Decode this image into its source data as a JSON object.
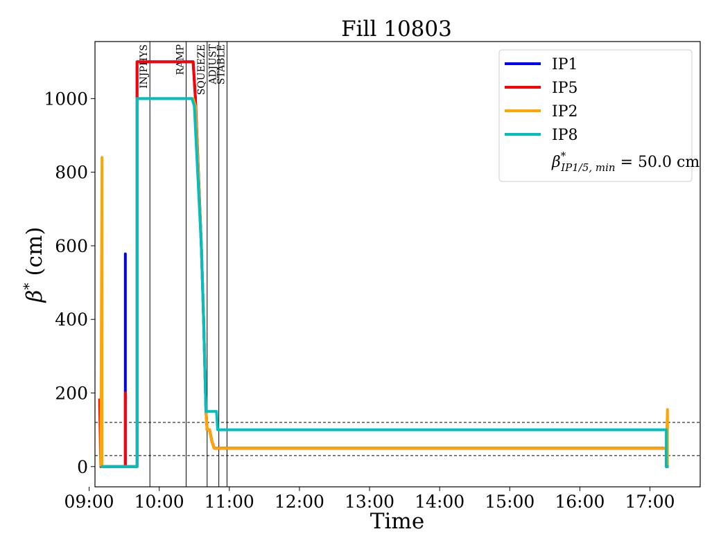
{
  "chart_data": {
    "type": "line",
    "title": "Fill 10803",
    "xlabel": "Time",
    "ylabel_symbol": "β",
    "ylabel_sup": "*",
    "ylabel_unit": "(cm)",
    "xlim": [
      "09:05",
      "17:43"
    ],
    "ylim": [
      -55,
      1155
    ],
    "x_ticks": [
      "09:00",
      "10:00",
      "11:00",
      "12:00",
      "13:00",
      "14:00",
      "15:00",
      "16:00",
      "17:00"
    ],
    "y_ticks": [
      0,
      200,
      400,
      600,
      800,
      1000
    ],
    "grid": false,
    "legend_position": "top-right",
    "legend_annotation": {
      "symbol": "β",
      "sup": "*",
      "sub": "IP1/5, min",
      "value_text": " = 50.0 cm"
    },
    "hlines": [
      30,
      120
    ],
    "phases": [
      {
        "label": "INJPHYS",
        "time": "09:52"
      },
      {
        "label": "RAMP",
        "time": "10:23"
      },
      {
        "label": "SQUEEZE",
        "time": "10:41"
      },
      {
        "label": "ADJUST",
        "time": "10:51"
      },
      {
        "label": "STABLE",
        "time": "10:58"
      }
    ],
    "series": [
      {
        "name": "IP1",
        "color": "#0000ff",
        "points": [
          [
            "09:10",
            0
          ],
          [
            "09:31",
            0
          ],
          [
            "09:31",
            578
          ],
          [
            "09:31",
            0
          ],
          [
            "09:41",
            0
          ],
          [
            "09:41",
            1100
          ],
          [
            "10:29",
            1100
          ],
          [
            "10:31",
            1000
          ],
          [
            "10:36",
            600
          ],
          [
            "10:38",
            400
          ],
          [
            "10:40",
            150
          ],
          [
            "10:41",
            100
          ],
          [
            "10:43",
            100
          ],
          [
            "10:45",
            70
          ],
          [
            "10:47",
            50
          ],
          [
            "17:14",
            50
          ],
          [
            "17:14",
            0
          ],
          [
            "17:16",
            0
          ]
        ]
      },
      {
        "name": "IP5",
        "color": "#ff0000",
        "points": [
          [
            "09:09",
            185
          ],
          [
            "09:10",
            0
          ],
          [
            "09:31",
            0
          ],
          [
            "09:31",
            200
          ],
          [
            "09:31",
            0
          ],
          [
            "09:41",
            0
          ],
          [
            "09:41",
            1100
          ],
          [
            "10:29",
            1100
          ],
          [
            "10:31",
            1000
          ],
          [
            "10:36",
            600
          ],
          [
            "10:38",
            400
          ],
          [
            "10:40",
            150
          ],
          [
            "10:41",
            100
          ],
          [
            "10:43",
            100
          ],
          [
            "10:45",
            70
          ],
          [
            "10:47",
            50
          ],
          [
            "17:14",
            50
          ],
          [
            "17:14",
            0
          ],
          [
            "17:16",
            0
          ]
        ]
      },
      {
        "name": "IP2",
        "color": "#ffa500",
        "points": [
          [
            "09:10",
            0
          ],
          [
            "09:11",
            840
          ],
          [
            "09:11",
            0
          ],
          [
            "09:41",
            0
          ],
          [
            "09:41",
            1000
          ],
          [
            "10:29",
            1000
          ],
          [
            "10:31",
            980
          ],
          [
            "10:36",
            600
          ],
          [
            "10:38",
            400
          ],
          [
            "10:40",
            150
          ],
          [
            "10:41",
            100
          ],
          [
            "10:43",
            100
          ],
          [
            "10:45",
            70
          ],
          [
            "10:47",
            50
          ],
          [
            "17:14",
            50
          ],
          [
            "17:15",
            155
          ],
          [
            "17:15",
            0
          ],
          [
            "17:16",
            0
          ]
        ]
      },
      {
        "name": "IP8",
        "color": "#00bfbf",
        "points": [
          [
            "09:10",
            0
          ],
          [
            "09:41",
            0
          ],
          [
            "09:41",
            1000
          ],
          [
            "10:28",
            1000
          ],
          [
            "10:30",
            980
          ],
          [
            "10:36",
            600
          ],
          [
            "10:38",
            400
          ],
          [
            "10:40",
            150
          ],
          [
            "10:49",
            150
          ],
          [
            "10:50",
            100
          ],
          [
            "17:14",
            100
          ],
          [
            "17:14",
            0
          ],
          [
            "17:16",
            0
          ]
        ]
      }
    ]
  }
}
